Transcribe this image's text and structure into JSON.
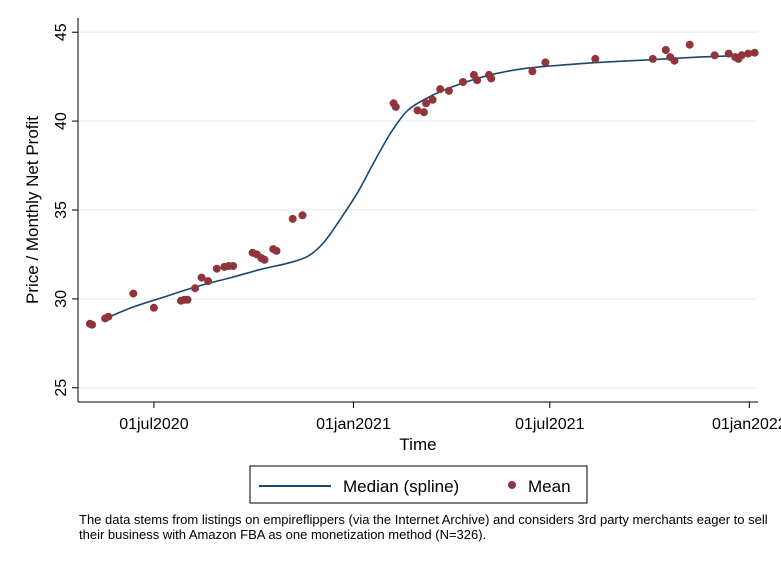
{
  "chart_data": {
    "type": "scatter",
    "xlabel": "Time",
    "ylabel": "Price / Monthly Net Profit",
    "x_range": [
      "2020-04-22",
      "2022-01-09"
    ],
    "ylim": [
      24.2,
      45.8
    ],
    "yticks": [
      25,
      30,
      35,
      40,
      45
    ],
    "xticks": [
      {
        "date": "2020-07-01",
        "label": "01jul2020"
      },
      {
        "date": "2021-01-01",
        "label": "01jan2021"
      },
      {
        "date": "2021-07-01",
        "label": "01jul2021"
      },
      {
        "date": "2022-01-01",
        "label": "01jan2022"
      }
    ],
    "grid": "horizontal",
    "legend_position": "bottom",
    "series": [
      {
        "name": "Median (spline)",
        "kind": "line",
        "color": "#1a476f",
        "points": [
          [
            "2020-05-14",
            28.8
          ],
          [
            "2020-06-10",
            29.5
          ],
          [
            "2020-07-10",
            30.1
          ],
          [
            "2020-08-10",
            30.7
          ],
          [
            "2020-09-10",
            31.2
          ],
          [
            "2020-10-10",
            31.7
          ],
          [
            "2020-11-01",
            32.0
          ],
          [
            "2020-11-20",
            32.4
          ],
          [
            "2020-12-05",
            33.2
          ],
          [
            "2020-12-20",
            34.5
          ],
          [
            "2021-01-05",
            36.0
          ],
          [
            "2021-01-20",
            37.7
          ],
          [
            "2021-02-05",
            39.4
          ],
          [
            "2021-02-20",
            40.6
          ],
          [
            "2021-03-10",
            41.3
          ],
          [
            "2021-04-01",
            41.9
          ],
          [
            "2021-05-01",
            42.5
          ],
          [
            "2021-06-01",
            42.9
          ],
          [
            "2021-07-01",
            43.1
          ],
          [
            "2021-08-15",
            43.3
          ],
          [
            "2021-10-01",
            43.45
          ],
          [
            "2021-11-15",
            43.6
          ],
          [
            "2022-01-03",
            43.7
          ]
        ]
      },
      {
        "name": "Mean",
        "kind": "scatter",
        "color": "#90353b",
        "points": [
          [
            "2020-05-03",
            28.6
          ],
          [
            "2020-05-05",
            28.55
          ],
          [
            "2020-05-17",
            28.9
          ],
          [
            "2020-05-20",
            29.0
          ],
          [
            "2020-06-12",
            30.3
          ],
          [
            "2020-07-01",
            29.5
          ],
          [
            "2020-07-26",
            29.9
          ],
          [
            "2020-07-29",
            29.95
          ],
          [
            "2020-08-01",
            29.95
          ],
          [
            "2020-08-08",
            30.6
          ],
          [
            "2020-08-14",
            31.2
          ],
          [
            "2020-08-20",
            31.0
          ],
          [
            "2020-08-28",
            31.7
          ],
          [
            "2020-09-04",
            31.8
          ],
          [
            "2020-09-08",
            31.85
          ],
          [
            "2020-09-12",
            31.85
          ],
          [
            "2020-09-30",
            32.6
          ],
          [
            "2020-10-04",
            32.5
          ],
          [
            "2020-10-08",
            32.3
          ],
          [
            "2020-10-11",
            32.2
          ],
          [
            "2020-10-19",
            32.8
          ],
          [
            "2020-10-22",
            32.7
          ],
          [
            "2020-11-06",
            34.5
          ],
          [
            "2020-11-15",
            34.7
          ],
          [
            "2021-02-07",
            41.0
          ],
          [
            "2021-02-09",
            40.8
          ],
          [
            "2021-03-01",
            40.6
          ],
          [
            "2021-03-07",
            40.5
          ],
          [
            "2021-03-09",
            41.0
          ],
          [
            "2021-03-15",
            41.2
          ],
          [
            "2021-03-22",
            41.8
          ],
          [
            "2021-03-30",
            41.7
          ],
          [
            "2021-04-12",
            42.2
          ],
          [
            "2021-04-22",
            42.6
          ],
          [
            "2021-04-25",
            42.3
          ],
          [
            "2021-05-06",
            42.6
          ],
          [
            "2021-05-08",
            42.4
          ],
          [
            "2021-06-15",
            42.8
          ],
          [
            "2021-06-27",
            43.3
          ],
          [
            "2021-08-12",
            43.5
          ],
          [
            "2021-10-04",
            43.5
          ],
          [
            "2021-10-16",
            44.0
          ],
          [
            "2021-10-20",
            43.6
          ],
          [
            "2021-10-24",
            43.4
          ],
          [
            "2021-11-07",
            44.3
          ],
          [
            "2021-11-30",
            43.7
          ],
          [
            "2021-12-13",
            43.8
          ],
          [
            "2021-12-19",
            43.6
          ],
          [
            "2021-12-22",
            43.5
          ],
          [
            "2021-12-25",
            43.7
          ],
          [
            "2021-12-31",
            43.8
          ],
          [
            "2022-01-06",
            43.85
          ]
        ]
      }
    ],
    "note": "The data stems from listings on empireflippers (via the Internet Archive) and considers 3rd party merchants eager to sell their business with Amazon FBA as one monetization method (N=326)."
  }
}
